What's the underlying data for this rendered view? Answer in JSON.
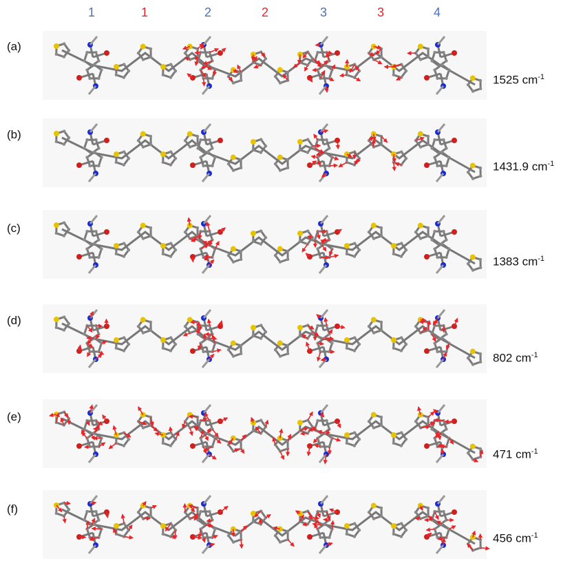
{
  "header": {
    "labels": [
      {
        "text": "1",
        "color": "#4a72b8"
      },
      {
        "text": "1",
        "color": "#e8262a"
      },
      {
        "text": "2",
        "color": "#4a72b8"
      },
      {
        "text": "2",
        "color": "#e8262a"
      },
      {
        "text": "3",
        "color": "#4a72b8"
      },
      {
        "text": "3",
        "color": "#e8262a"
      },
      {
        "text": "4",
        "color": "#4a72b8"
      }
    ]
  },
  "panels": [
    {
      "label": "(a)",
      "frequency": "1525",
      "unit": "cm",
      "exponent": "-1"
    },
    {
      "label": "(b)",
      "frequency": "1431.9",
      "unit": "cm",
      "exponent": "-1"
    },
    {
      "label": "(c)",
      "frequency": "1383",
      "unit": "cm",
      "exponent": "-1"
    },
    {
      "label": "(d)",
      "frequency": "802",
      "unit": "cm",
      "exponent": "-1"
    },
    {
      "label": "(e)",
      "frequency": "471",
      "unit": "cm",
      "exponent": "-1"
    },
    {
      "label": "(f)",
      "frequency": "456",
      "unit": "cm",
      "exponent": "-1"
    }
  ]
}
